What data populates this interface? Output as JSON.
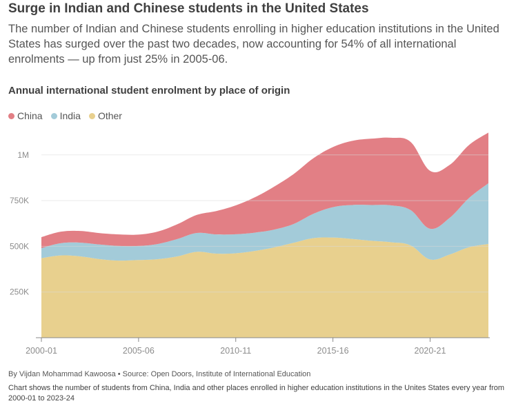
{
  "header": {
    "title": "Surge in Indian and Chinese students in the United States",
    "subtitle": "The number of Indian and Chinese students enrolling in higher education institutions in the United States has surged over the past two decades, now accounting for 54% of all international enrolments — up from just 25% in 2005-06."
  },
  "footer": {
    "byline": "By Vijdan Mohammad Kawoosa • Source: Open Doors, Institute of International Education",
    "note": "Chart shows the number of students from China, India and other places enrolled in higher education institutions in the Unites States every year from 2000-01 to 2023-24"
  },
  "colors": {
    "china": "#e27f85",
    "india": "#a3cbd9",
    "other": "#e8d08e",
    "grid": "#d9d9d9",
    "axis_text": "#8c8c8c"
  },
  "chart_data": {
    "type": "area",
    "stacked": true,
    "title": "Annual international student enrolment by place of origin",
    "legend_position": "top-left",
    "grid": true,
    "x": [
      "2000-01",
      "2001-02",
      "2002-03",
      "2003-04",
      "2004-05",
      "2005-06",
      "2006-07",
      "2007-08",
      "2008-09",
      "2009-10",
      "2010-11",
      "2011-12",
      "2012-13",
      "2013-14",
      "2014-15",
      "2015-16",
      "2016-17",
      "2017-18",
      "2018-19",
      "2019-20",
      "2020-21",
      "2021-22",
      "2022-23",
      "2023-24"
    ],
    "x_tick_labels": [
      "2000-01",
      "2005-06",
      "2010-11",
      "2015-16",
      "2020-21"
    ],
    "ylim": [
      0,
      1150000
    ],
    "y_ticks": [
      250000,
      500000,
      750000,
      1000000
    ],
    "y_tick_labels": [
      "250K",
      "500K",
      "750K",
      "1M"
    ],
    "series": [
      {
        "name": "Other",
        "key": "other",
        "values": [
          435000,
          450000,
          445000,
          430000,
          422000,
          425000,
          430000,
          445000,
          470000,
          460000,
          462000,
          475000,
          495000,
          520000,
          545000,
          548000,
          540000,
          530000,
          522000,
          505000,
          428000,
          455000,
          495000,
          513000
        ]
      },
      {
        "name": "India",
        "key": "india",
        "values": [
          55000,
          67000,
          75000,
          80000,
          80000,
          77000,
          83000,
          95000,
          103000,
          105000,
          104000,
          100000,
          97000,
          103000,
          133000,
          166000,
          186000,
          196000,
          202000,
          193000,
          168000,
          200000,
          269000,
          332000
        ]
      },
      {
        "name": "China",
        "key": "china",
        "values": [
          60000,
          63000,
          64000,
          62000,
          63000,
          62000,
          68000,
          81000,
          99000,
          128000,
          158000,
          194000,
          236000,
          274000,
          304000,
          329000,
          351000,
          363000,
          370000,
          373000,
          317000,
          290000,
          290000,
          277000
        ]
      }
    ]
  }
}
